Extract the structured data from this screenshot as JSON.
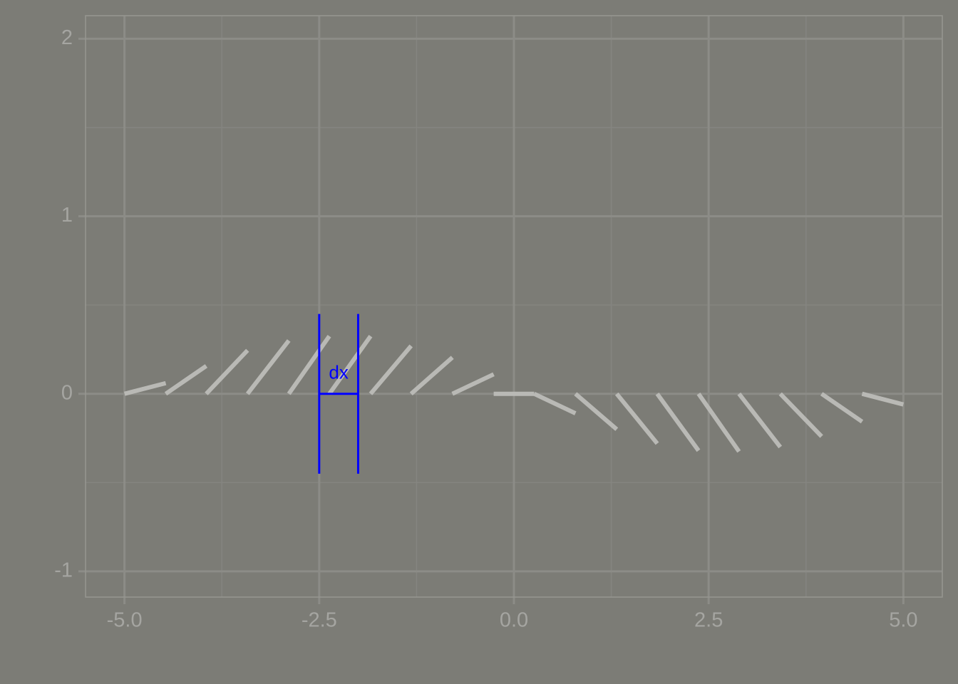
{
  "chart_data": {
    "type": "segments",
    "segments": [
      {
        "x0": -5.0,
        "y0": 0,
        "x1": -4.47,
        "y1": 0.06
      },
      {
        "x0": -4.47,
        "y0": 0,
        "x1": -3.95,
        "y1": 0.157
      },
      {
        "x0": -3.95,
        "y0": 0,
        "x1": -3.42,
        "y1": 0.245
      },
      {
        "x0": -3.42,
        "y0": 0,
        "x1": -2.89,
        "y1": 0.3
      },
      {
        "x0": -2.89,
        "y0": 0,
        "x1": -2.37,
        "y1": 0.325
      },
      {
        "x0": -2.37,
        "y0": 0,
        "x1": -1.84,
        "y1": 0.325
      },
      {
        "x0": -1.84,
        "y0": 0,
        "x1": -1.32,
        "y1": 0.27
      },
      {
        "x0": -1.32,
        "y0": 0,
        "x1": -0.79,
        "y1": 0.205
      },
      {
        "x0": -0.79,
        "y0": 0,
        "x1": -0.26,
        "y1": 0.11
      },
      {
        "x0": -0.26,
        "y0": 0,
        "x1": 0.26,
        "y1": 0
      },
      {
        "x0": 0.26,
        "y0": 0,
        "x1": 0.79,
        "y1": -0.11
      },
      {
        "x0": 0.79,
        "y0": 0,
        "x1": 1.32,
        "y1": -0.2
      },
      {
        "x0": 1.32,
        "y0": 0,
        "x1": 1.84,
        "y1": -0.28
      },
      {
        "x0": 1.84,
        "y0": 0,
        "x1": 2.37,
        "y1": -0.32
      },
      {
        "x0": 2.37,
        "y0": 0,
        "x1": 2.89,
        "y1": -0.325
      },
      {
        "x0": 2.89,
        "y0": 0,
        "x1": 3.42,
        "y1": -0.3
      },
      {
        "x0": 3.42,
        "y0": 0,
        "x1": 3.95,
        "y1": -0.24
      },
      {
        "x0": 3.95,
        "y0": 0,
        "x1": 4.47,
        "y1": -0.157
      },
      {
        "x0": 4.47,
        "y0": 0,
        "x1": 5.0,
        "y1": -0.06
      }
    ],
    "color": "#b9b9b5",
    "annotation": {
      "text": "dx",
      "x_start": -2.5,
      "x_end": -2.0,
      "y_top": 0.45,
      "y_bottom": -0.45,
      "y_bar": 0,
      "color": "#0000ff"
    },
    "xlim": [
      -5.5,
      5.5
    ],
    "ylim": [
      -1.145,
      2.13
    ],
    "xticks": [
      {
        "value": -5,
        "label": "-5.0"
      },
      {
        "value": -2.5,
        "label": "-2.5"
      },
      {
        "value": 0,
        "label": "0.0"
      },
      {
        "value": 2.5,
        "label": "2.5"
      },
      {
        "value": 5,
        "label": "5.0"
      }
    ],
    "yticks": [
      -1,
      0,
      1,
      2
    ],
    "minor_xticks": [
      -3.75,
      -1.25,
      1.25,
      3.75
    ],
    "minor_yticks": [
      -0.5,
      0.5,
      1.5
    ],
    "grid": true
  }
}
